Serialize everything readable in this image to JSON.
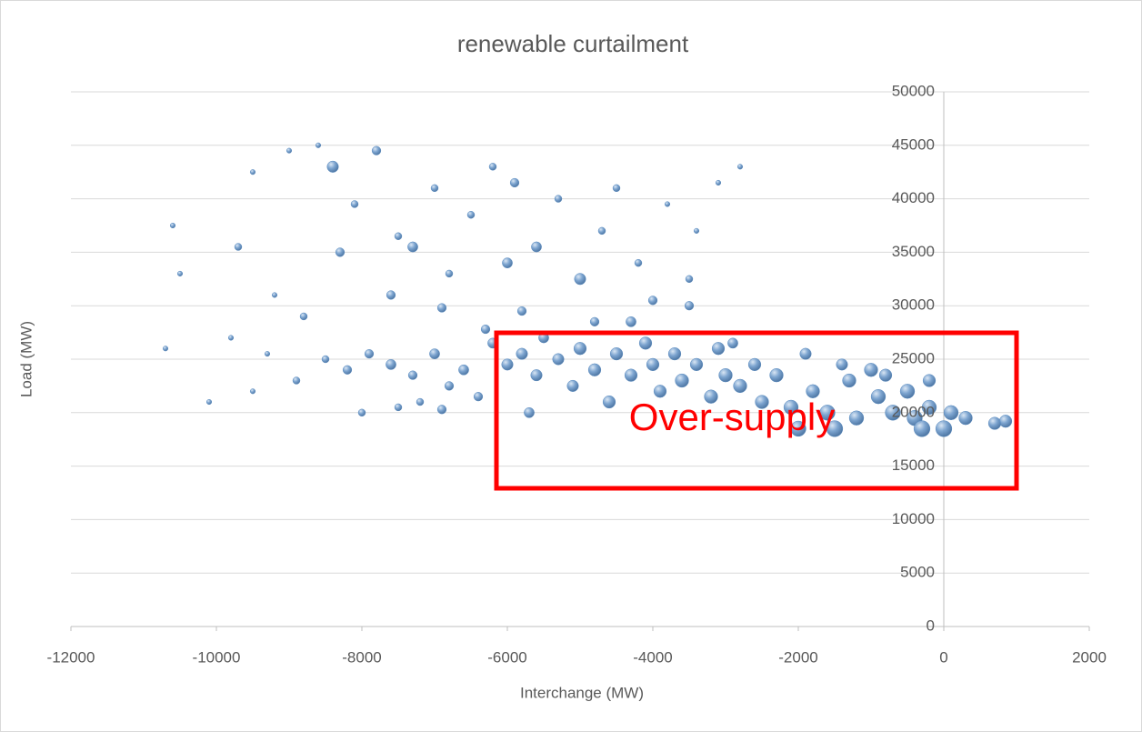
{
  "chart_data": {
    "type": "bubble",
    "title": "renewable curtailment",
    "x_label": "Interchange (MW)",
    "y_label": "Load (MW)",
    "annotation": "Over-supply",
    "color": "#5b8cc0",
    "grid": true,
    "xlim": [
      -12000,
      2000
    ],
    "xticks": [
      -12000,
      -10000,
      -8000,
      -6000,
      -4000,
      -2000,
      0,
      2000
    ],
    "ylim": [
      0,
      50000
    ],
    "yticks": [
      0,
      5000,
      10000,
      15000,
      20000,
      25000,
      30000,
      35000,
      40000,
      45000,
      50000
    ],
    "x": [
      -10600,
      -10500,
      -9700,
      -9500,
      -9000,
      -8600,
      -8400,
      -8100,
      -7800,
      -7500,
      -7300,
      -7000,
      -6800,
      -6500,
      -6200,
      -5900,
      -5600,
      -5300,
      -5000,
      -4700,
      -4500,
      -4200,
      -3800,
      -3500,
      -3400,
      -3100,
      -2800,
      -8300,
      -7600,
      -6000,
      -4000,
      -3500,
      -9200,
      -8800,
      -5800,
      -4800,
      -6900,
      -9800,
      -10100,
      -9500,
      -10700,
      -8500,
      -8200,
      -7900,
      -7600,
      -7300,
      -7000,
      -6800,
      -6600,
      -6400,
      -6200,
      -6000,
      -5800,
      -5600,
      -5500,
      -5300,
      -5100,
      -5000,
      -4800,
      -4600,
      -4500,
      -4300,
      -4100,
      -4000,
      -3900,
      -3700,
      -3600,
      -3400,
      -3200,
      -3100,
      -3000,
      -2800,
      -2600,
      -2500,
      -2300,
      -2100,
      -2000,
      -1800,
      -1600,
      -1500,
      -1300,
      -1200,
      -1000,
      -900,
      -700,
      -500,
      -400,
      -300,
      -200,
      0,
      100,
      300,
      700,
      850,
      -8000,
      -7500,
      -7200,
      -6900,
      -5700,
      -8900,
      -9300,
      -4300,
      -6300,
      -2900,
      -1900,
      -1400,
      -800,
      -200
    ],
    "values": [
      37500,
      33000,
      35500,
      42500,
      44500,
      45000,
      43000,
      39500,
      44500,
      36500,
      35500,
      41000,
      33000,
      38500,
      43000,
      41500,
      35500,
      40000,
      32500,
      37000,
      41000,
      34000,
      39500,
      32500,
      37000,
      41500,
      43000,
      35000,
      31000,
      34000,
      30500,
      30000,
      31000,
      29000,
      29500,
      28500,
      29800,
      27000,
      21000,
      22000,
      26000,
      25000,
      24000,
      25500,
      24500,
      23500,
      25500,
      22500,
      24000,
      21500,
      26500,
      24500,
      25500,
      23500,
      27000,
      25000,
      22500,
      26000,
      24000,
      21000,
      25500,
      23500,
      26500,
      24500,
      22000,
      25500,
      23000,
      24500,
      21500,
      26000,
      23500,
      22500,
      24500,
      21000,
      23500,
      20500,
      18500,
      22000,
      20000,
      18500,
      23000,
      19500,
      24000,
      21500,
      20000,
      22000,
      19500,
      18500,
      20500,
      18500,
      20000,
      19500,
      19000,
      19200,
      20000,
      20500,
      21000,
      20300,
      20000,
      23000,
      25500,
      28500,
      27800,
      26500,
      25500,
      24500,
      23500,
      23000
    ],
    "sizes": [
      1,
      1,
      2,
      1,
      1,
      1,
      5,
      2,
      3,
      2,
      4,
      2,
      2,
      2,
      2,
      3,
      4,
      2,
      5,
      2,
      2,
      2,
      1,
      2,
      1,
      1,
      1,
      3,
      3,
      4,
      3,
      3,
      1,
      2,
      3,
      3,
      3,
      1,
      1,
      1,
      1,
      2,
      3,
      3,
      4,
      3,
      4,
      3,
      4,
      3,
      4,
      5,
      5,
      5,
      4,
      5,
      5,
      6,
      6,
      6,
      6,
      6,
      6,
      6,
      6,
      6,
      7,
      6,
      7,
      6,
      7,
      7,
      6,
      7,
      7,
      8,
      9,
      7,
      9,
      10,
      7,
      8,
      7,
      8,
      9,
      8,
      9,
      10,
      8,
      10,
      8,
      7,
      6,
      6,
      2,
      2,
      2,
      3,
      4,
      2,
      1,
      4,
      3,
      4,
      5,
      5,
      6,
      6
    ]
  }
}
